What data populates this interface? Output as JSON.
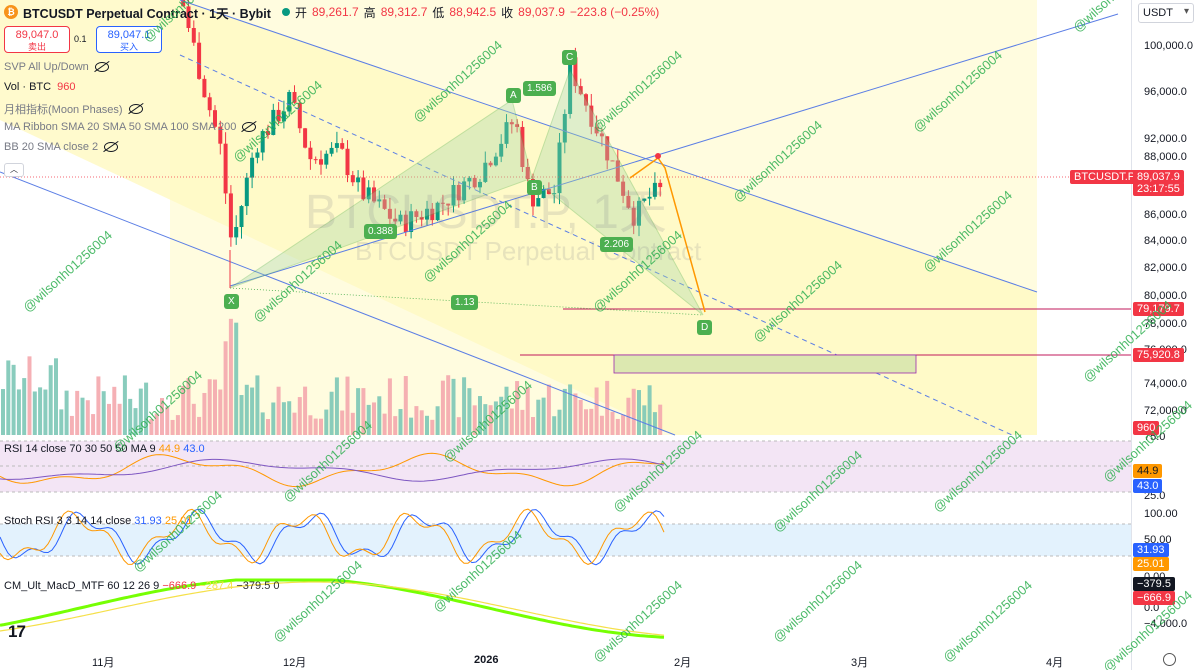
{
  "header": {
    "symbol": "BTCUSDT Perpetual Contract · 1天 · Bybit",
    "open_label": "开",
    "open": "89,261.7",
    "high_label": "高",
    "high": "89,312.7",
    "low_label": "低",
    "low": "88,942.5",
    "close_label": "收",
    "close": "89,037.9",
    "change": "−223.8 (−0.25%)"
  },
  "trade": {
    "sell_price": "89,047.0",
    "sell_label": "卖出",
    "spread": "0.1",
    "buy_price": "89,047.1",
    "buy_label": "买入"
  },
  "indicators": [
    {
      "label": "SVP All Up/Down",
      "value": ""
    },
    {
      "label": "Vol · BTC",
      "value": "960"
    },
    {
      "label": "月相指标(Moon Phases)",
      "value": ""
    },
    {
      "label": "MA Ribbon SMA 20 SMA 50 SMA 100 SMA 200",
      "value": ""
    },
    {
      "label": "BB 20 SMA close 2",
      "value": ""
    }
  ],
  "rsi": {
    "label": "RSI 14 close 70 30 50 50 MA 9",
    "v1": "44.9",
    "v2": "43.0"
  },
  "stoch": {
    "label": "Stoch RSI 3 3 14 14 close",
    "k": "31.93",
    "d": "25.01"
  },
  "macd": {
    "label": "CM_Ult_MacD_MTF 60 12 26 9",
    "v1": "−666.9",
    "v2": "−287.4",
    "v3": "−379.5",
    "v4": "0"
  },
  "axis": {
    "currency": "USDT",
    "price_ticks": [
      "100,000.0",
      "96,000.0",
      "92,000.0",
      "88,000.0",
      "86,000.0",
      "84,000.0",
      "82,000.0",
      "80,000.0",
      "78,000.0",
      "76,000.0",
      "74,000.0",
      "72,000.0"
    ],
    "rsi_ticks": [
      "75.0",
      "25.0"
    ],
    "stoch_ticks": [
      "100.00",
      "50.00",
      "0.00"
    ],
    "macd_ticks": [
      "0.0",
      "−4,000.0"
    ],
    "last_price_symbol": "BTCUSDT.P",
    "last_price": "89,037.9",
    "countdown": "23:17:55",
    "level1": "79,179.7",
    "level2": "75,920.8",
    "vol_tag": "960",
    "rsi_tag1": "44.9",
    "rsi_tag2": "43.0",
    "stoch_tag1": "31.93",
    "stoch_tag2": "25.01",
    "macd_tag1": "−379.5",
    "macd_tag2": "−666.9"
  },
  "time_axis": [
    "11月",
    "12月",
    "2026",
    "2月",
    "3月",
    "4月"
  ],
  "pattern": {
    "points": [
      "X",
      "A",
      "B",
      "C",
      "D"
    ],
    "ratios": [
      "0.388",
      "1.586",
      "2.206",
      "1.13"
    ]
  },
  "watermark": {
    "line1": "BTCUSDT.P, 1天",
    "line2": "BTCUSDT Perpetual Contract"
  },
  "overlay_text": "@wilsonh01256004",
  "colors": {
    "up": "#089981",
    "down": "#f23645",
    "accent": "#2962ff",
    "channel": "#fff9c4",
    "pattern": "#4caf50"
  }
}
